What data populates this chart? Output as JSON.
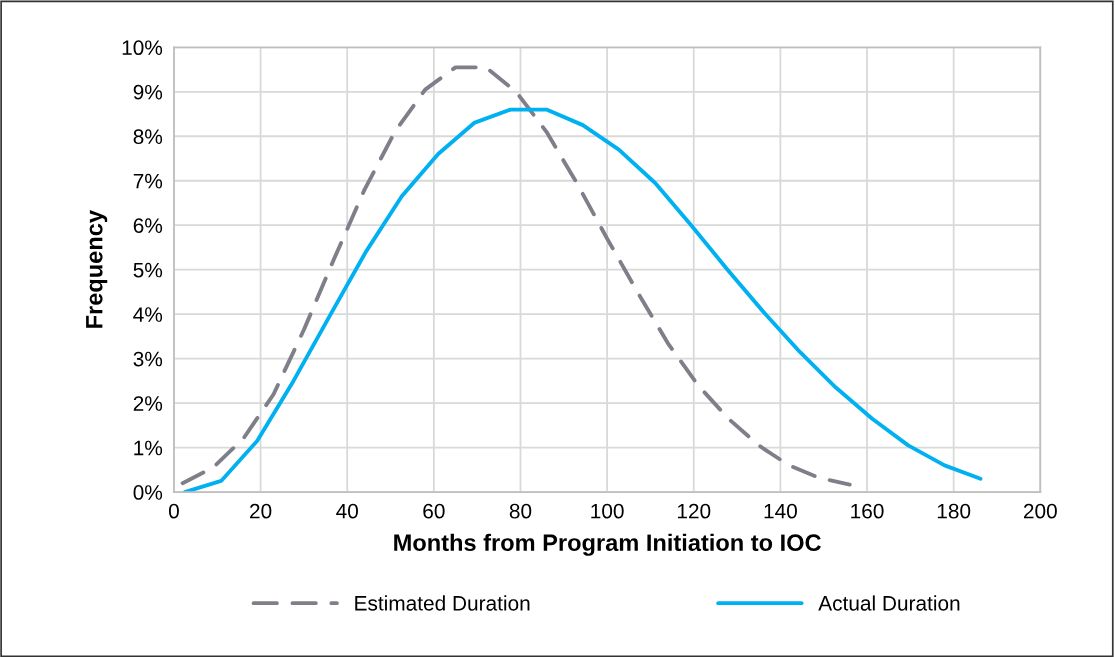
{
  "chart_data": {
    "type": "line",
    "xlabel": "Months from Program Initiation to IOC",
    "ylabel": "Frequency",
    "xlim": [
      0,
      200
    ],
    "xticks": [
      0,
      20,
      40,
      60,
      80,
      100,
      120,
      140,
      160,
      180,
      200
    ],
    "ylim": [
      0,
      10
    ],
    "yticks": [
      {
        "value": 0,
        "label": "0%"
      },
      {
        "value": 1,
        "label": "1%"
      },
      {
        "value": 2,
        "label": "2%"
      },
      {
        "value": 3,
        "label": "3%"
      },
      {
        "value": 4,
        "label": "4%"
      },
      {
        "value": 5,
        "label": "5%"
      },
      {
        "value": 6,
        "label": "6%"
      },
      {
        "value": 7,
        "label": "7%"
      },
      {
        "value": 8,
        "label": "8%"
      },
      {
        "value": 9,
        "label": "9%"
      },
      {
        "value": 10,
        "label": "10%"
      }
    ],
    "grid": true,
    "legend": "bottom",
    "marker": "none",
    "series": [
      {
        "name": "Estimated Duration",
        "color": "#7f7f8a",
        "line_style": "dashed",
        "x": [
          2,
          9,
          16,
          23,
          30,
          37,
          44,
          51,
          58,
          65,
          72,
          79,
          86,
          93,
          100,
          107,
          114,
          121,
          128,
          135,
          142,
          149,
          156
        ],
        "values": [
          0.2,
          0.55,
          1.2,
          2.2,
          3.65,
          5.25,
          6.8,
          8.1,
          9.05,
          9.55,
          9.55,
          9.0,
          8.1,
          6.95,
          5.7,
          4.5,
          3.35,
          2.4,
          1.65,
          1.05,
          0.6,
          0.32,
          0.17
        ]
      },
      {
        "name": "Actual Duration",
        "color": "#00b0f0",
        "line_style": "solid",
        "x": [
          2.5,
          10.9,
          19.2,
          27.6,
          35.9,
          44.3,
          52.6,
          61.0,
          69.3,
          77.7,
          86.0,
          94.4,
          102.7,
          111.1,
          119.4,
          127.8,
          136.1,
          144.5,
          152.8,
          161.2,
          169.5,
          177.9,
          186.2
        ],
        "values": [
          0.0,
          0.25,
          1.15,
          2.5,
          3.95,
          5.4,
          6.65,
          7.6,
          8.3,
          8.6,
          8.6,
          8.25,
          7.7,
          6.95,
          6.0,
          5.0,
          4.05,
          3.15,
          2.35,
          1.65,
          1.05,
          0.6,
          0.3
        ]
      }
    ]
  }
}
